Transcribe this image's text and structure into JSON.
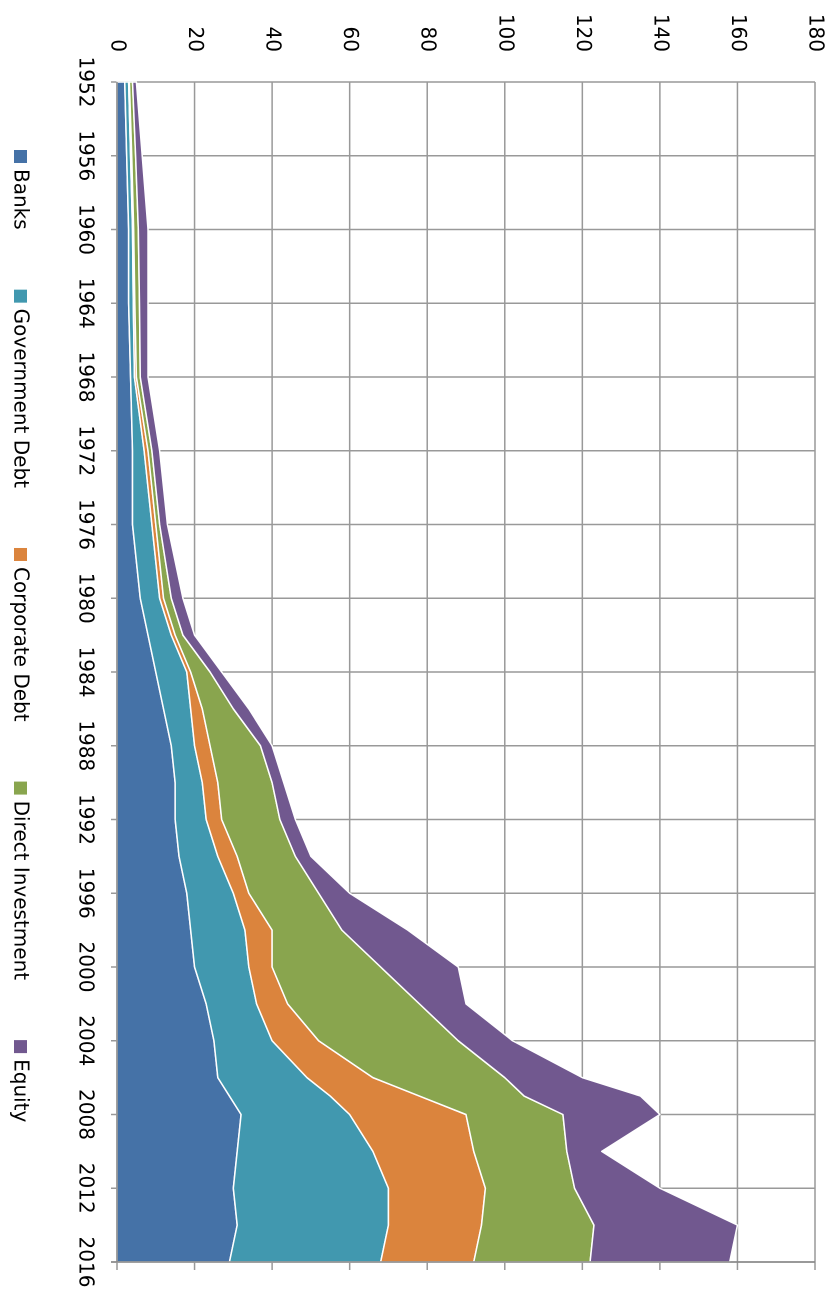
{
  "chart_data": {
    "type": "area",
    "stacked": true,
    "grid": true,
    "x": [
      1952,
      1956,
      1960,
      1964,
      1968,
      1972,
      1976,
      1980,
      1982,
      1984,
      1986,
      1988,
      1990,
      1992,
      1994,
      1996,
      1998,
      2000,
      2002,
      2004,
      2006,
      2007,
      2008,
      2010,
      2012,
      2014,
      2016
    ],
    "series": [
      {
        "name": "Banks",
        "color": "#4572a7",
        "values": [
          2,
          2.5,
          3,
          3,
          3.5,
          4,
          4,
          6,
          8,
          10,
          12,
          14,
          15,
          15,
          16,
          18,
          19,
          20,
          23,
          25,
          26,
          29,
          32,
          31,
          30,
          31,
          29
        ]
      },
      {
        "name": "Government Debt",
        "color": "#4198af",
        "values": [
          1,
          1,
          1,
          1.2,
          1,
          3,
          5,
          5,
          6,
          8,
          7,
          6,
          7,
          8,
          10,
          12,
          14,
          14,
          13,
          15,
          23,
          26,
          28,
          35,
          40,
          39,
          39
        ]
      },
      {
        "name": "Corporate Debt",
        "color": "#db843d",
        "values": [
          0.2,
          0.3,
          0.3,
          0.4,
          0.5,
          1,
          1,
          1,
          1,
          1,
          3,
          4,
          4,
          4,
          5,
          4,
          7,
          6,
          8,
          12,
          17,
          23,
          30,
          26,
          25,
          24,
          24
        ]
      },
      {
        "name": "Direct Investment",
        "color": "#89a54e",
        "values": [
          0.8,
          1,
          1.2,
          1.2,
          1,
          1,
          1,
          2,
          2,
          5,
          8,
          13,
          14,
          15,
          15,
          18,
          18,
          28,
          34,
          36,
          34,
          27,
          25,
          24,
          23,
          29,
          30
        ]
      },
      {
        "name": "Equity",
        "color": "#71588f",
        "values": [
          1,
          1.7,
          2.5,
          2.2,
          2,
          2,
          2,
          3,
          3,
          3,
          4,
          3,
          3,
          4,
          4,
          8,
          17,
          20,
          12,
          14,
          20,
          30,
          25,
          9,
          22,
          37,
          36
        ]
      }
    ],
    "xlim": [
      1952,
      2016
    ],
    "xticks": [
      1952,
      1956,
      1960,
      1964,
      1968,
      1972,
      1976,
      1980,
      1984,
      1988,
      1992,
      1996,
      2000,
      2004,
      2008,
      2012,
      2016
    ],
    "ylim": [
      0,
      180
    ],
    "yticks": [
      0,
      20,
      40,
      60,
      80,
      100,
      120,
      140,
      160,
      180
    ]
  }
}
